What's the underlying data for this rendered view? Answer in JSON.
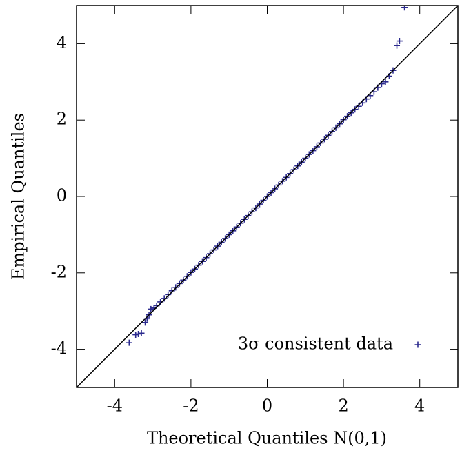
{
  "chart_data": {
    "type": "scatter",
    "xlabel": "Theoretical Quantiles N(0,1)",
    "ylabel": "Empirical Quantiles",
    "xlim": [
      -5,
      5
    ],
    "ylim": [
      -5,
      5
    ],
    "xticks": [
      -4,
      -2,
      0,
      2,
      4
    ],
    "yticks": [
      -4,
      -2,
      0,
      2,
      4
    ],
    "legend": "bottom-right",
    "series": [
      {
        "name": "3σ consistent data",
        "color": "#2b2a8e",
        "marker": "+",
        "x": [
          -3.62,
          -3.45,
          -3.38,
          -3.3,
          -3.2,
          -3.15,
          -3.1,
          -3.05,
          -2.97,
          -2.9,
          -2.8,
          -2.7,
          -2.6,
          -2.5,
          -2.4,
          -2.3,
          -2.2,
          -2.1,
          -2.0,
          -1.9,
          -1.8,
          -1.7,
          -1.6,
          -1.5,
          -1.4,
          -1.3,
          -1.2,
          -1.1,
          -1.0,
          -0.9,
          -0.8,
          -0.7,
          -0.6,
          -0.5,
          -0.4,
          -0.3,
          -0.2,
          -0.1,
          0,
          0.1,
          0.2,
          0.3,
          0.4,
          0.5,
          0.6,
          0.7,
          0.8,
          0.9,
          1.0,
          1.1,
          1.2,
          1.3,
          1.4,
          1.5,
          1.6,
          1.7,
          1.8,
          1.9,
          2.0,
          2.1,
          2.2,
          2.3,
          2.4,
          2.5,
          2.6,
          2.7,
          2.8,
          2.9,
          3.0,
          3.1,
          3.2,
          3.3,
          3.4,
          3.47,
          3.6
        ],
        "values": [
          -3.83,
          -3.62,
          -3.6,
          -3.58,
          -3.3,
          -3.2,
          -3.1,
          -2.95,
          -2.92,
          -2.86,
          -2.76,
          -2.67,
          -2.57,
          -2.47,
          -2.38,
          -2.28,
          -2.19,
          -2.09,
          -1.99,
          -1.9,
          -1.8,
          -1.7,
          -1.6,
          -1.5,
          -1.4,
          -1.3,
          -1.2,
          -1.1,
          -1.0,
          -0.9,
          -0.8,
          -0.7,
          -0.6,
          -0.5,
          -0.4,
          -0.3,
          -0.2,
          -0.1,
          0,
          0.1,
          0.2,
          0.3,
          0.4,
          0.5,
          0.6,
          0.7,
          0.8,
          0.9,
          1.0,
          1.1,
          1.2,
          1.3,
          1.4,
          1.5,
          1.6,
          1.7,
          1.8,
          1.9,
          2.01,
          2.1,
          2.19,
          2.28,
          2.36,
          2.45,
          2.55,
          2.64,
          2.74,
          2.85,
          2.95,
          3.0,
          3.15,
          3.3,
          3.95,
          4.07,
          4.95
        ]
      },
      {
        "type": "line",
        "color": "#000000",
        "x": [
          -5,
          5
        ],
        "values": [
          -5,
          5
        ]
      }
    ]
  }
}
